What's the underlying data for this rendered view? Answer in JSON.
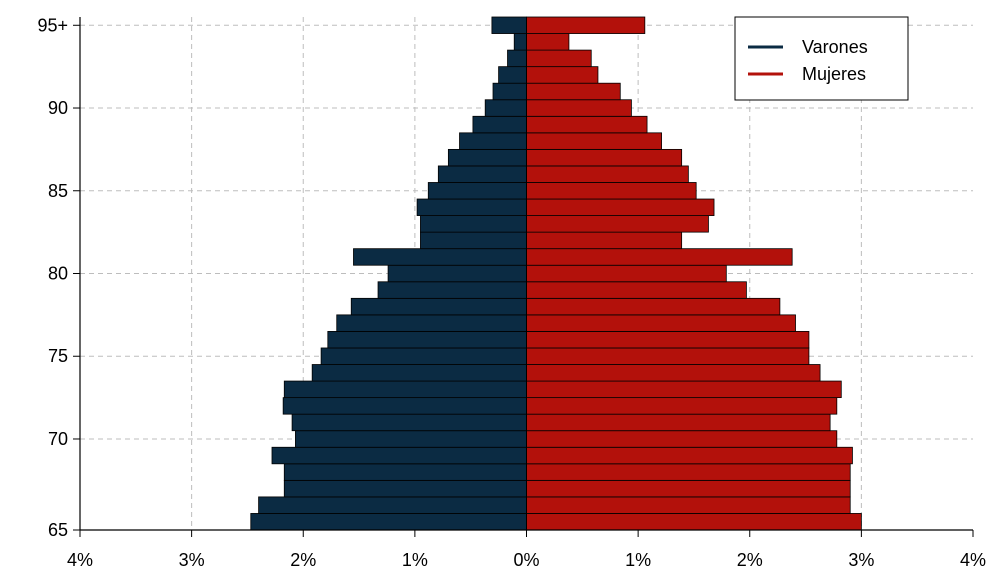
{
  "chart_data": {
    "type": "bar",
    "orientation": "horizontal",
    "layout": "population-pyramid",
    "ages": [
      65,
      66,
      67,
      68,
      69,
      70,
      71,
      72,
      73,
      74,
      75,
      76,
      77,
      78,
      79,
      80,
      81,
      82,
      83,
      84,
      85,
      86,
      87,
      88,
      89,
      90,
      91,
      92,
      93,
      94,
      95
    ],
    "series": [
      {
        "name": "Varones",
        "side": "left",
        "color": "#0b2b43",
        "values": [
          2.47,
          2.4,
          2.17,
          2.17,
          2.28,
          2.07,
          2.1,
          2.18,
          2.17,
          1.92,
          1.84,
          1.78,
          1.7,
          1.57,
          1.33,
          1.24,
          1.55,
          0.95,
          0.95,
          0.98,
          0.88,
          0.79,
          0.7,
          0.6,
          0.48,
          0.37,
          0.3,
          0.25,
          0.17,
          0.11,
          0.31
        ]
      },
      {
        "name": "Mujeres",
        "side": "right",
        "color": "#b3110b",
        "values": [
          3.0,
          2.9,
          2.9,
          2.9,
          2.92,
          2.78,
          2.72,
          2.78,
          2.82,
          2.63,
          2.53,
          2.53,
          2.41,
          2.27,
          1.97,
          1.79,
          2.38,
          1.39,
          1.63,
          1.68,
          1.52,
          1.45,
          1.39,
          1.21,
          1.08,
          0.94,
          0.84,
          0.64,
          0.58,
          0.38,
          1.06
        ]
      }
    ],
    "y_ticks": [
      {
        "age": 65,
        "label": "65"
      },
      {
        "age": 70,
        "label": "70"
      },
      {
        "age": 75,
        "label": "75"
      },
      {
        "age": 80,
        "label": "80"
      },
      {
        "age": 85,
        "label": "85"
      },
      {
        "age": 90,
        "label": "90"
      },
      {
        "age": 95,
        "label": "95+"
      }
    ],
    "x_ticks": [
      {
        "value": -4,
        "label": "4%"
      },
      {
        "value": -3,
        "label": "3%"
      },
      {
        "value": -2,
        "label": "2%"
      },
      {
        "value": -1,
        "label": "1%"
      },
      {
        "value": 0,
        "label": "0%"
      },
      {
        "value": 1,
        "label": "1%"
      },
      {
        "value": 2,
        "label": "2%"
      },
      {
        "value": 3,
        "label": "3%"
      },
      {
        "value": 4,
        "label": "4%"
      }
    ],
    "xlim": [
      -4,
      4
    ],
    "grid": true,
    "legend_position": "top-right",
    "title": "",
    "xlabel": "",
    "ylabel": ""
  }
}
